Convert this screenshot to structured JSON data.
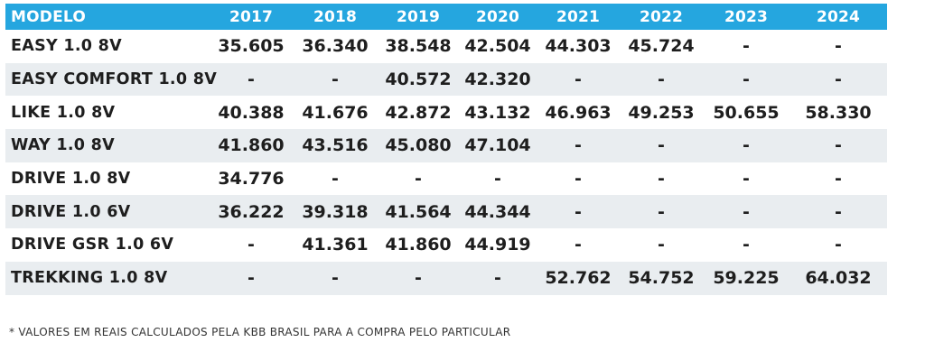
{
  "table": {
    "headers": [
      "MODELO",
      "2017",
      "2018",
      "2019",
      "2020",
      "2021",
      "2022",
      "2023",
      "2024"
    ],
    "rows": [
      [
        "EASY 1.0 8V",
        "35.605",
        "36.340",
        "38.548",
        "42.504",
        "44.303",
        "45.724",
        "-",
        "-"
      ],
      [
        "EASY COMFORT 1.0 8V",
        "-",
        "-",
        "40.572",
        "42.320",
        "-",
        "-",
        "-",
        "-"
      ],
      [
        "LIKE 1.0 8V",
        "40.388",
        "41.676",
        "42.872",
        "43.132",
        "46.963",
        "49.253",
        "50.655",
        "58.330"
      ],
      [
        "WAY 1.0 8V",
        "41.860",
        "43.516",
        "45.080",
        "47.104",
        "-",
        "-",
        "-",
        "-"
      ],
      [
        "DRIVE 1.0 8V",
        "34.776",
        "-",
        "-",
        "-",
        "-",
        "-",
        "-",
        "-"
      ],
      [
        "DRIVE 1.0 6V",
        "36.222",
        "39.318",
        "41.564",
        "44.344",
        "-",
        "-",
        "-",
        "-"
      ],
      [
        "DRIVE GSR 1.0 6V",
        "-",
        "41.361",
        "41.860",
        "44.919",
        "-",
        "-",
        "-",
        "-"
      ],
      [
        "TREKKING 1.0 8V",
        "-",
        "-",
        "-",
        "-",
        "52.762",
        "54.752",
        "59.225",
        "64.032"
      ]
    ]
  },
  "footnote": "* VALORES EM REAIS CALCULADOS PELA KBB BRASIL PARA A COMPRA PELO PARTICULAR",
  "colors": {
    "header_bg": "#25a6df",
    "header_text": "#ffffff",
    "alt_row_bg": "#e9edf0",
    "cell_text": "#1e1e1e"
  }
}
